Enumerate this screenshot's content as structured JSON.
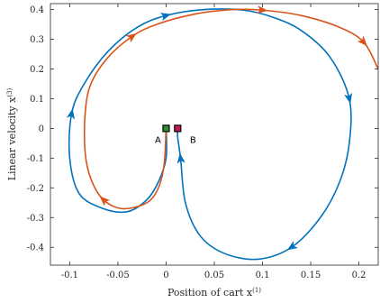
{
  "chart_data": {
    "type": "line",
    "title": "",
    "xlabel": "Position of cart x",
    "xlabel_sup": "(1)",
    "ylabel": "Linear velocity x",
    "ylabel_sup": "(3)",
    "xlim": [
      -0.12,
      0.22
    ],
    "ylim": [
      -0.46,
      0.42
    ],
    "x_ticks": [
      -0.1,
      -0.05,
      0,
      0.05,
      0.1,
      0.15,
      0.2
    ],
    "x_tick_labels": [
      "-0.1",
      "-0.05",
      "0",
      "0.05",
      "0.1",
      "0.15",
      "0.2"
    ],
    "y_ticks": [
      -0.4,
      -0.3,
      -0.2,
      -0.1,
      0,
      0.1,
      0.2,
      0.3,
      0.4
    ],
    "y_tick_labels": [
      "-0.4",
      "-0.3",
      "-0.2",
      "-0.1",
      "0",
      "0.1",
      "0.2",
      "0.3",
      "0.4"
    ],
    "grid": false,
    "colors": {
      "blue": "#0072BD",
      "orange": "#D95319",
      "marker_a": "#2f8f2f",
      "marker_b": "#c2185b"
    },
    "series": [
      {
        "color": "blue",
        "points": [
          [
            0.0,
            0.0
          ],
          [
            0.0,
            -0.1
          ],
          [
            -0.008,
            -0.18
          ],
          [
            -0.02,
            -0.24
          ],
          [
            -0.04,
            -0.28
          ],
          [
            -0.065,
            -0.27
          ],
          [
            -0.09,
            -0.22
          ],
          [
            -0.1,
            -0.1
          ],
          [
            -0.098,
            0.05
          ],
          [
            -0.085,
            0.15
          ],
          [
            -0.06,
            0.26
          ],
          [
            -0.03,
            0.34
          ],
          [
            0.0,
            0.38
          ],
          [
            0.04,
            0.4
          ],
          [
            0.08,
            0.398
          ],
          [
            0.11,
            0.375
          ],
          [
            0.14,
            0.33
          ],
          [
            0.17,
            0.24
          ],
          [
            0.19,
            0.1
          ],
          [
            0.19,
            -0.05
          ],
          [
            0.18,
            -0.18
          ],
          [
            0.16,
            -0.3
          ],
          [
            0.13,
            -0.4
          ],
          [
            0.095,
            -0.44
          ],
          [
            0.06,
            -0.42
          ],
          [
            0.035,
            -0.36
          ],
          [
            0.02,
            -0.25
          ],
          [
            0.015,
            -0.1
          ],
          [
            0.012,
            -0.03
          ],
          [
            0.012,
            0.0
          ]
        ],
        "arrows": [
          {
            "index": 22,
            "dir": 1
          },
          {
            "index": 18,
            "dir": 1
          },
          {
            "index": 12,
            "dir": 1
          },
          {
            "index": 8,
            "dir": 1
          },
          {
            "index": 27,
            "dir": 1
          }
        ]
      },
      {
        "color": "orange",
        "points": [
          [
            0.0,
            0.0
          ],
          [
            -0.002,
            -0.12
          ],
          [
            -0.008,
            -0.2
          ],
          [
            -0.02,
            -0.25
          ],
          [
            -0.045,
            -0.27
          ],
          [
            -0.065,
            -0.24
          ],
          [
            -0.078,
            -0.17
          ],
          [
            -0.084,
            -0.08
          ],
          [
            -0.084,
            0.05
          ],
          [
            -0.078,
            0.15
          ],
          [
            -0.06,
            0.24
          ],
          [
            -0.035,
            0.31
          ],
          [
            -0.01,
            0.35
          ],
          [
            0.03,
            0.385
          ],
          [
            0.07,
            0.4
          ],
          [
            0.1,
            0.398
          ],
          [
            0.14,
            0.38
          ],
          [
            0.18,
            0.34
          ],
          [
            0.205,
            0.29
          ],
          [
            0.22,
            0.2
          ]
        ],
        "arrows": [
          {
            "index": 5,
            "dir": 1
          },
          {
            "index": 11,
            "dir": 1
          },
          {
            "index": 15,
            "dir": 1
          },
          {
            "index": 18,
            "dir": 1
          }
        ]
      }
    ],
    "markers": [
      {
        "label": "A",
        "x": 0.0,
        "y": 0.0,
        "color": "marker_a"
      },
      {
        "label": "B",
        "x": 0.012,
        "y": 0.0,
        "color": "marker_b"
      }
    ]
  }
}
